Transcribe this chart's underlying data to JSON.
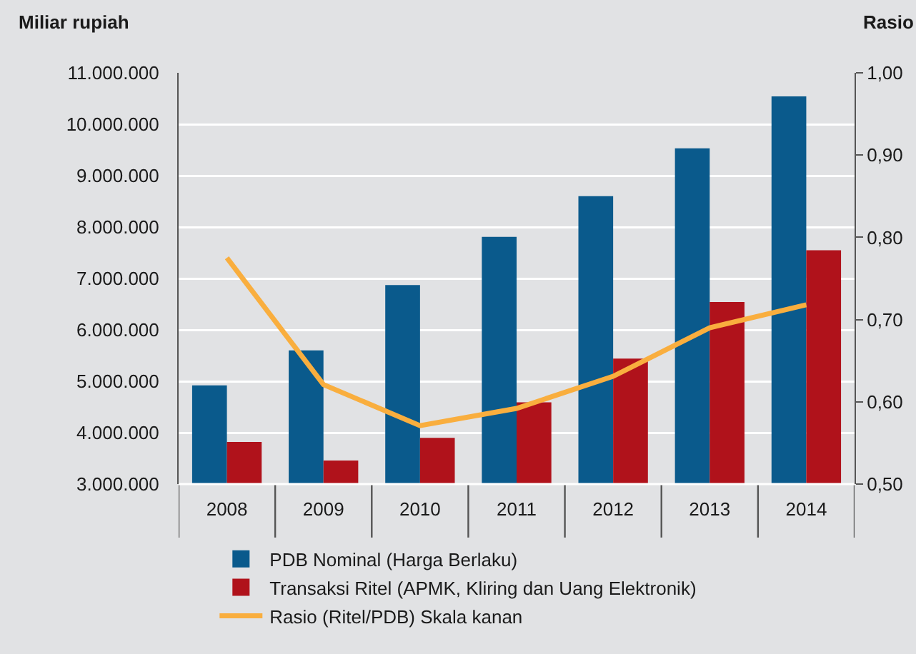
{
  "chart_data": {
    "type": "bar",
    "ylabel": "Miliar rupiah",
    "y2label": "Rasio",
    "categories": [
      "2008",
      "2009",
      "2010",
      "2011",
      "2012",
      "2013",
      "2014"
    ],
    "series": [
      {
        "name": "PDB Nominal (Harga Berlaku)",
        "color": "#0a5a8c",
        "values": [
          4920000,
          5600000,
          6870000,
          7810000,
          8600000,
          9530000,
          10540000
        ]
      },
      {
        "name": "Transaksi Ritel (APMK, Kliring dan Uang Elektronik)",
        "color": "#b0121b",
        "values": [
          3820000,
          3460000,
          3900000,
          4590000,
          5440000,
          6540000,
          7550000
        ]
      },
      {
        "name": "Rasio (Ritel/PDB) Skala kanan",
        "type": "line",
        "axis": "y2",
        "color": "#f9ae3e",
        "values": [
          0.775,
          0.621,
          0.571,
          0.592,
          0.631,
          0.69,
          0.718
        ]
      }
    ],
    "ylim": [
      3000000,
      11000000
    ],
    "yticks": [
      {
        "value": 3000000,
        "label": "3.000.000"
      },
      {
        "value": 4000000,
        "label": "4.000.000"
      },
      {
        "value": 5000000,
        "label": "5.000.000"
      },
      {
        "value": 6000000,
        "label": "6.000.000"
      },
      {
        "value": 7000000,
        "label": "7.000.000"
      },
      {
        "value": 8000000,
        "label": "8.000.000"
      },
      {
        "value": 9000000,
        "label": "9.000.000"
      },
      {
        "value": 10000000,
        "label": "10.000.000"
      },
      {
        "value": 11000000,
        "label": "11.000.000"
      }
    ],
    "y2lim": [
      0.5,
      1
    ],
    "y2ticks": [
      {
        "value": 0.5,
        "label": "0,50"
      },
      {
        "value": 0.6,
        "label": "0,60"
      },
      {
        "value": 0.7,
        "label": "0,70"
      },
      {
        "value": 0.8,
        "label": "0,80"
      },
      {
        "value": 0.9,
        "label": "0,90"
      },
      {
        "value": 1,
        "label": "1,00"
      }
    ],
    "grid": "y",
    "legend": "bottom",
    "marker": "none",
    "line_style": "solid"
  }
}
